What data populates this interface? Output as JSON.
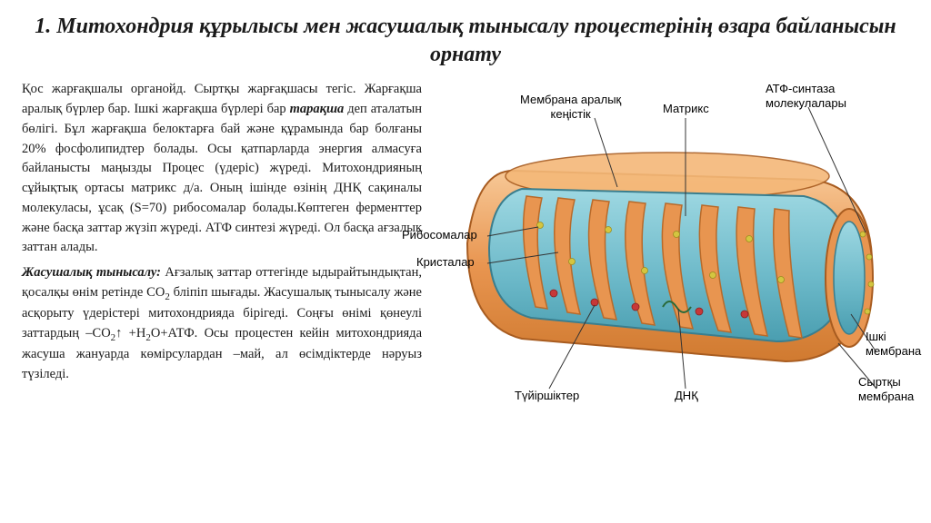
{
  "title": "1. Митохондрия құрылысы мен жасушалық тынысалу процестерінің өзара байланысын орнату",
  "para1_pre": "Қос жарғақшалы органойд. Сыртқы жарғақшасы тегіс. Жарғақша аралық бүрлер бар. Ішкі жарғақша бүрлері бар ",
  "para1_em": "тарақша",
  "para1_post": " деп аталатын бөлігі. Бұл жарғақша белоктарға бай және құрамында бар болғаны 20% фосфолипидтер болады. Осы қатпарларда энергия алмасуға байланысты маңызды Процес (үдеріс) жүреді. Митохондрияның сұйықтық ортасы матрикс д/а. Оның ішінде өзінің ДНҚ сақиналы молекуласы, ұсақ (S=70) рибосомалар болады.Көптеген ферменттер және басқа заттар жүзіп жүреді. АТФ синтезі жүреді. Ол басқа ағзалық заттан алады.",
  "para2_em": "Жасушалық тынысалу:",
  "para2_post": " Ағзалық заттар оттегінде ыдырайтындықтан, қосалқы өнім ретінде СО",
  "para2_cont": " бліпіп шығады. Жасушалық тынысалу және асқорыту үдерістері митохондрияда бірігеді. Соңғы өнімі қөнеулі заттардың –СО",
  "para2_end": "↑ +Н",
  "para2_end2": "О+АТФ. Осы процестен кейін митохондрияда жасуша жануарда көмірсулардан –май, ал өсімдіктерде нәруыз түзіледі.",
  "labels": {
    "mem_aralyk": "Мембрана аралық\nкеңістік",
    "matrix": "Матрикс",
    "atp": "АТФ-синтаза\nмолекулалары",
    "ribosome": "Рибосомалар",
    "cristae": "Кристалар",
    "granule": "Түйіршіктер",
    "dnk": "ДНҚ",
    "inner": "Ішкі\nмембрана",
    "outer": "Сыртқы\nмембрана"
  },
  "colors": {
    "outer_membrane": "#e89550",
    "outer_highlight": "#f4b878",
    "inner_membrane": "#d97840",
    "matrix": "#7ec5d4",
    "matrix_dark": "#4a9eb0",
    "cristae_fill": "#5aa8b8",
    "ribosome": "#d4c540",
    "granule": "#c73838",
    "label_line": "#333333",
    "bg": "#ffffff"
  },
  "layout": {
    "title_fontsize": 24,
    "body_fontsize": 14.5,
    "label_fontsize": 13
  }
}
